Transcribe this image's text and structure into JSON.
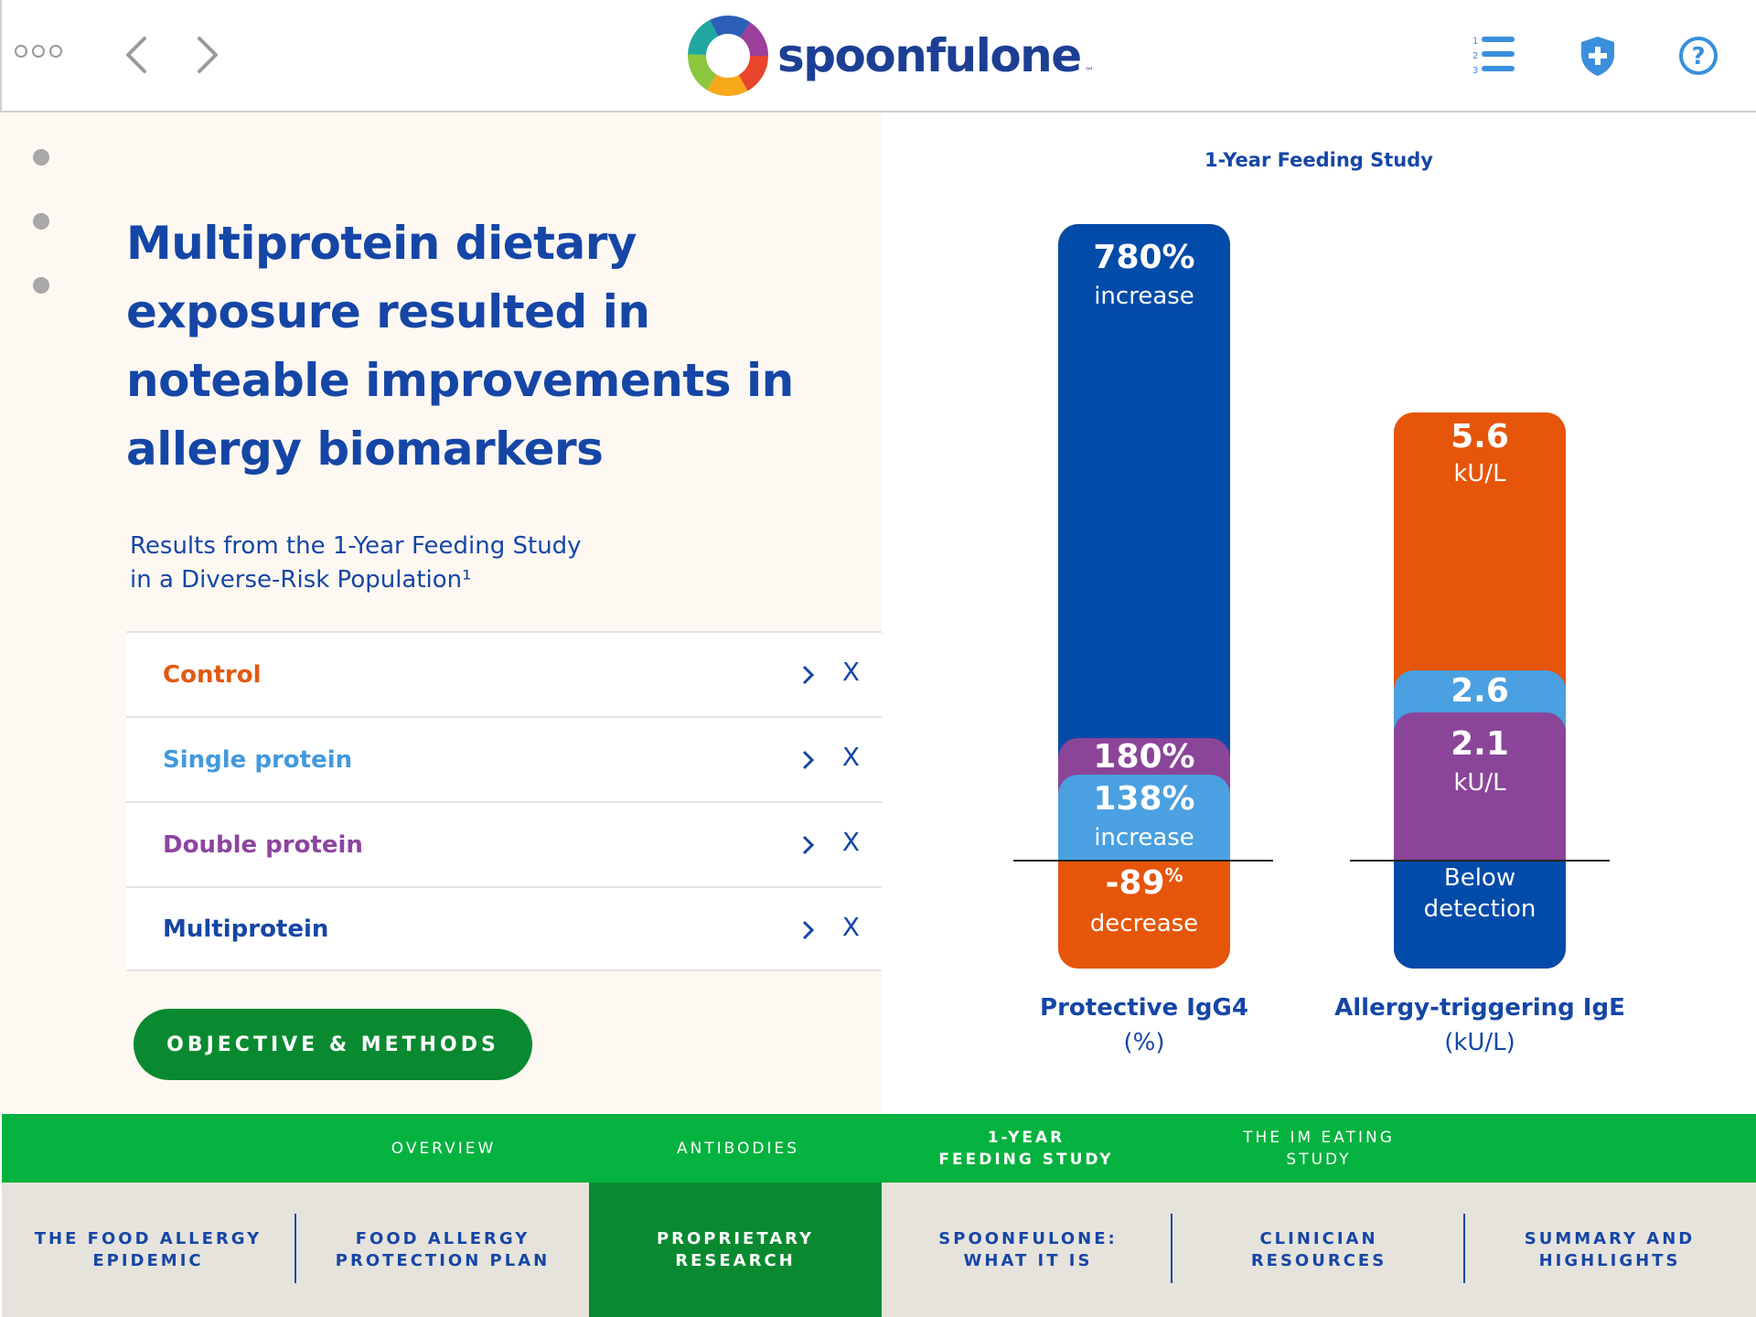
{
  "app": {
    "brand": "spoonfulone",
    "brand_tm": "™"
  },
  "icons": {
    "menu": "ellipsis-icon",
    "back": "chevron-left-icon",
    "forward": "chevron-right-icon",
    "list": "numbered-list-icon",
    "shield": "shield-plus-icon",
    "help": "help-circle-icon"
  },
  "colors": {
    "brand_blue": "#1546a6",
    "bar_blue": "#034ba9",
    "light_blue": "#4aa0e0",
    "purple": "#8a4599",
    "orange": "#e5550a",
    "green": "#04b23f",
    "dark_green": "#0a8a30"
  },
  "left": {
    "headline": "Multiprotein dietary exposure resulted in noteable improvements in allergy biomarkers",
    "subhead_line1": "Results from the 1-Year Feeding Study",
    "subhead_line2": "in a Diverse-Risk Population¹",
    "groups": [
      {
        "label": "Control",
        "close": "X"
      },
      {
        "label": "Single protein",
        "close": "X"
      },
      {
        "label": "Double protein",
        "close": "X"
      },
      {
        "label": "Multiprotein",
        "close": "X"
      }
    ],
    "cta": "OBJECTIVE & METHODS"
  },
  "chart_data": {
    "type": "bar",
    "title": "1-Year Feeding Study",
    "categories": [
      "Protective IgG4",
      "Allergy-triggering IgE"
    ],
    "category_units": [
      "(%)",
      "(kU/L)"
    ],
    "series": [
      {
        "name": "Multiprotein",
        "values": [
          780,
          null
        ],
        "labels": [
          "780%",
          "Below detection"
        ]
      },
      {
        "name": "Double protein",
        "values": [
          180,
          2.1
        ],
        "labels": [
          "180%",
          "2.1"
        ]
      },
      {
        "name": "Single protein",
        "values": [
          138,
          2.6
        ],
        "labels": [
          "138%",
          "2.6"
        ]
      },
      {
        "name": "Control",
        "values": [
          -89,
          5.6
        ],
        "labels": [
          "-89%",
          "5.6"
        ]
      }
    ],
    "text": {
      "igg4_multi_value": "780%",
      "igg4_multi_sub": "increase",
      "igg4_double_value": "180%",
      "igg4_single_value": "138%",
      "igg4_single_sub": "increase",
      "igg4_control_value": "-89",
      "igg4_control_pct": "%",
      "igg4_control_sub": "decrease",
      "ige_control_value": "5.6",
      "ige_control_sub": "kU/L",
      "ige_single_value": "2.6",
      "ige_double_value": "2.1",
      "ige_double_sub": "kU/L",
      "ige_multi_line1": "Below",
      "ige_multi_line2": "detection",
      "igg4_label": "Protective IgG4",
      "igg4_unit": "(%)",
      "ige_label": "Allergy-triggering IgE",
      "ige_unit": "(kU/L)"
    }
  },
  "subtabs": [
    {
      "label1": "OVERVIEW",
      "label2": ""
    },
    {
      "label1": "ANTIBODIES",
      "label2": ""
    },
    {
      "label1": "1-YEAR",
      "label2": "FEEDING STUDY"
    },
    {
      "label1": "THE IM EATING",
      "label2": "STUDY"
    }
  ],
  "sections": [
    {
      "label1": "THE FOOD ALLERGY",
      "label2": "EPIDEMIC"
    },
    {
      "label1": "FOOD ALLERGY",
      "label2": "PROTECTION PLAN"
    },
    {
      "label1": "PROPRIETARY",
      "label2": "RESEARCH"
    },
    {
      "label1": "SPOONFULONE:",
      "label2": "WHAT IT IS"
    },
    {
      "label1": "CLINICIAN",
      "label2": "RESOURCES"
    },
    {
      "label1": "SUMMARY AND",
      "label2": "HIGHLIGHTS"
    }
  ]
}
